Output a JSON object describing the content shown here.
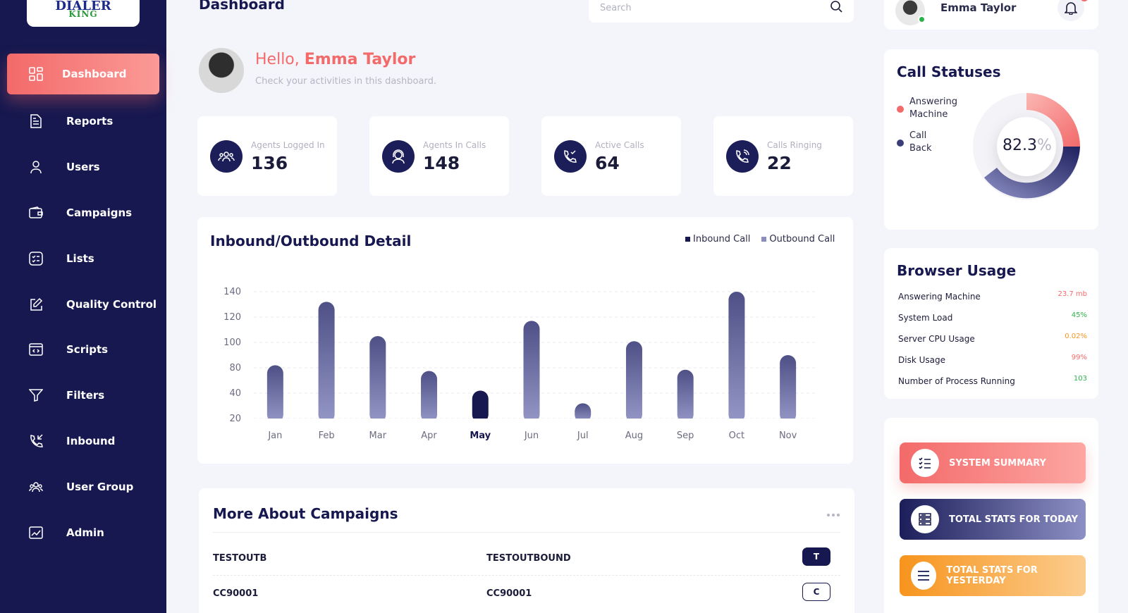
{
  "brand": {
    "line1": "DIALER",
    "line2": "KING"
  },
  "colors": {
    "sidebar": "#16184f",
    "accent": "#f36a6a",
    "navy": "#1c1e5a",
    "orange": "#f7941d",
    "green": "#2ab34a"
  },
  "sidebar": {
    "items": [
      {
        "label": "Dashboard",
        "icon": "grid-icon"
      },
      {
        "label": "Reports",
        "icon": "document-icon"
      },
      {
        "label": "Users",
        "icon": "user-icon"
      },
      {
        "label": "Campaigns",
        "icon": "wallet-icon"
      },
      {
        "label": "Lists",
        "icon": "checklist-icon"
      },
      {
        "label": "Quality Control",
        "icon": "edit-icon"
      },
      {
        "label": "Scripts",
        "icon": "code-window-icon"
      },
      {
        "label": "Filters",
        "icon": "filter-icon"
      },
      {
        "label": "Inbound",
        "icon": "phone-incoming-icon"
      },
      {
        "label": "User Group",
        "icon": "group-icon"
      },
      {
        "label": "Admin",
        "icon": "chart-icon"
      }
    ]
  },
  "header": {
    "title": "Dashboard",
    "search_placeholder": "Search"
  },
  "user": {
    "name": "Emma Taylor"
  },
  "greeting": {
    "hello": "Hello,",
    "name": "Emma Taylor",
    "subtitle": "Check your activities in this dashboard."
  },
  "stats": [
    {
      "label": "Agents Logged In",
      "value": "136",
      "icon": "users-icon"
    },
    {
      "label": "Agents In Calls",
      "value": "148",
      "icon": "headset-agent-icon"
    },
    {
      "label": "Active Calls",
      "value": "64",
      "icon": "phone-check-icon"
    },
    {
      "label": "Calls Ringing",
      "value": "22",
      "icon": "phone-ringing-icon"
    }
  ],
  "chart_data": {
    "type": "bar",
    "title": "Inbound/Outbound Detail",
    "legend": [
      "Inbound Call",
      "Outbound Call"
    ],
    "categories": [
      "Jan",
      "Feb",
      "Mar",
      "Apr",
      "May",
      "Jun",
      "Jul",
      "Aug",
      "Sep",
      "Oct",
      "Nov"
    ],
    "highlighted": "May",
    "values": [
      82,
      132,
      105,
      75,
      44,
      117,
      32,
      101,
      77,
      140,
      90
    ],
    "yticks": [
      "20",
      "40",
      "80",
      "100",
      "120",
      "140"
    ],
    "ylim": [
      20,
      140
    ]
  },
  "campaigns": {
    "title": "More About Campaigns",
    "more_icon": "ellipsis-icon",
    "rows": [
      {
        "id": "TESTOUTB",
        "name": "TESTOUTBOUND",
        "tag": "T"
      },
      {
        "id": "CC90001",
        "name": "CC90001",
        "tag": "C"
      }
    ]
  },
  "call_statuses": {
    "title": "Call Statuses",
    "legend": [
      {
        "label": "Answering Machine",
        "color": "#f36a6a"
      },
      {
        "label": "Call Back",
        "color": "#3b3d78"
      }
    ],
    "value": "82.3",
    "unit": "%"
  },
  "browser_usage": {
    "title": "Browser Usage",
    "rows": [
      {
        "label": "Answering Machine",
        "value": "23.7 mb",
        "color": "#f36a6a"
      },
      {
        "label": "System Load",
        "value": "45%",
        "color": "#2ab34a"
      },
      {
        "label": "Server CPU Usage",
        "value": "0.02%",
        "color": "#f7941d"
      },
      {
        "label": "Disk Usage",
        "value": "99%",
        "color": "#f36a6a"
      },
      {
        "label": "Number of Process Running",
        "value": "103",
        "color": "#2ab34a"
      }
    ]
  },
  "actions": [
    {
      "label": "SYSTEM SUMMARY",
      "icon": "list-icon"
    },
    {
      "label": "TOTAL STATS FOR TODAY",
      "icon": "server-icon"
    },
    {
      "label": "TOTAL STATS FOR YESTERDAY",
      "icon": "menu-icon"
    }
  ]
}
